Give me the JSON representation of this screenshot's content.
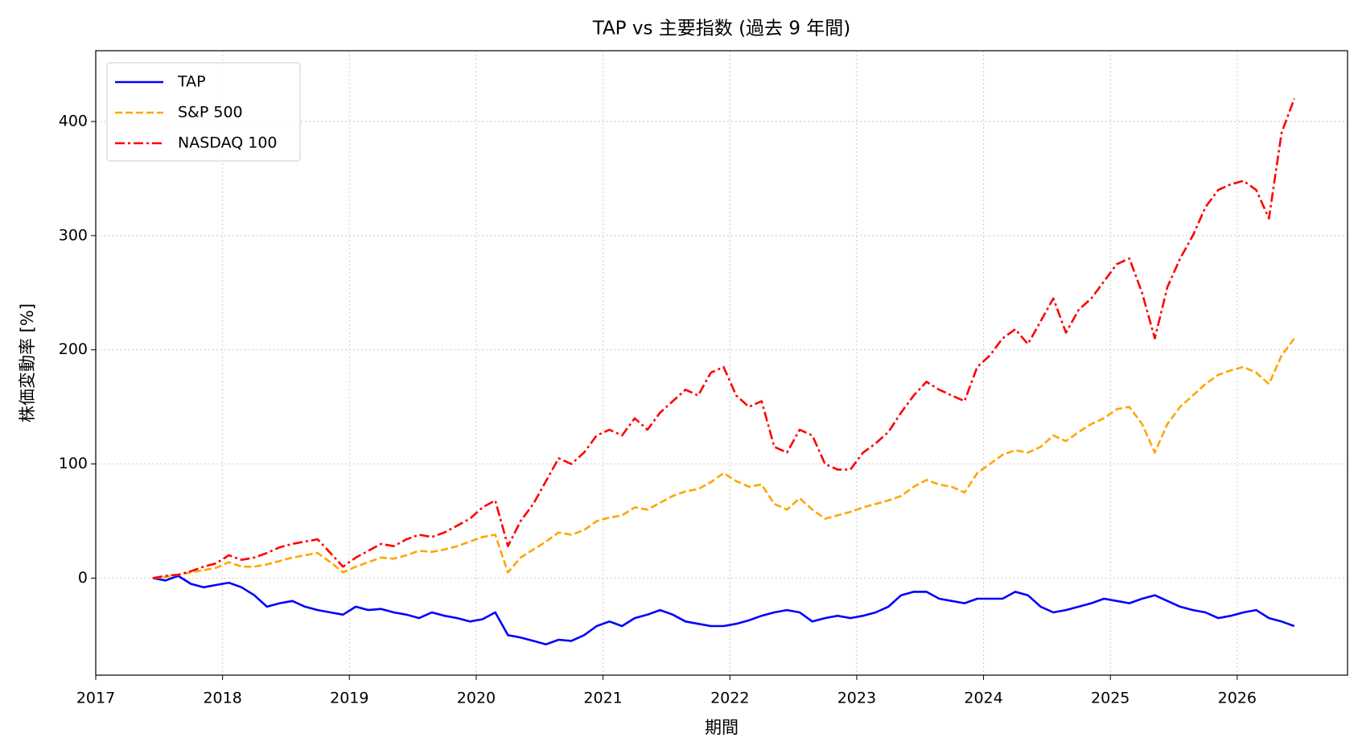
{
  "chart_data": {
    "type": "line",
    "title": "TAP vs 主要指数 (過去 9 年間)",
    "x_label": "期間",
    "y_label": "株価変動率 [%]",
    "x": [
      2017.45,
      2017.55,
      2017.65,
      2017.75,
      2017.85,
      2017.95,
      2018.05,
      2018.15,
      2018.25,
      2018.35,
      2018.45,
      2018.55,
      2018.65,
      2018.75,
      2018.85,
      2018.95,
      2019.05,
      2019.15,
      2019.25,
      2019.35,
      2019.45,
      2019.55,
      2019.65,
      2019.75,
      2019.85,
      2019.95,
      2020.05,
      2020.15,
      2020.25,
      2020.35,
      2020.45,
      2020.55,
      2020.65,
      2020.75,
      2020.85,
      2020.95,
      2021.05,
      2021.15,
      2021.25,
      2021.35,
      2021.45,
      2021.55,
      2021.65,
      2021.75,
      2021.85,
      2021.95,
      2022.05,
      2022.15,
      2022.25,
      2022.35,
      2022.45,
      2022.55,
      2022.65,
      2022.75,
      2022.85,
      2022.95,
      2023.05,
      2023.15,
      2023.25,
      2023.35,
      2023.45,
      2023.55,
      2023.65,
      2023.75,
      2023.85,
      2023.95,
      2024.05,
      2024.15,
      2024.25,
      2024.35,
      2024.45,
      2024.55,
      2024.65,
      2024.75,
      2024.85,
      2024.95,
      2025.05,
      2025.15,
      2025.25,
      2025.35,
      2025.45,
      2025.55,
      2025.65,
      2025.75,
      2025.85,
      2025.95,
      2026.05,
      2026.15,
      2026.25,
      2026.35,
      2026.45
    ],
    "series": [
      {
        "name": "TAP",
        "color": "#0000ff",
        "linestyle": "solid",
        "values": [
          0,
          -2,
          2,
          -5,
          -8,
          -6,
          -4,
          -8,
          -15,
          -25,
          -22,
          -20,
          -25,
          -28,
          -30,
          -32,
          -25,
          -28,
          -27,
          -30,
          -32,
          -35,
          -30,
          -33,
          -35,
          -38,
          -36,
          -30,
          -50,
          -52,
          -55,
          -58,
          -54,
          -55,
          -50,
          -42,
          -38,
          -42,
          -35,
          -32,
          -28,
          -32,
          -38,
          -40,
          -42,
          -42,
          -40,
          -37,
          -33,
          -30,
          -28,
          -30,
          -38,
          -35,
          -33,
          -35,
          -33,
          -30,
          -25,
          -15,
          -12,
          -12,
          -18,
          -20,
          -22,
          -18,
          -18,
          -18,
          -12,
          -15,
          -25,
          -30,
          -28,
          -25,
          -22,
          -18,
          -20,
          -22,
          -18,
          -15,
          -20,
          -25,
          -28,
          -30,
          -35,
          -33,
          -30,
          -28,
          -35,
          -38,
          -42
        ]
      },
      {
        "name": "S&P 500",
        "color": "#ffa500",
        "linestyle": "dashed",
        "values": [
          0,
          1,
          3,
          5,
          7,
          9,
          14,
          10,
          10,
          12,
          15,
          18,
          20,
          22,
          14,
          5,
          10,
          14,
          18,
          17,
          20,
          24,
          23,
          25,
          28,
          32,
          36,
          38,
          5,
          18,
          25,
          32,
          40,
          38,
          42,
          50,
          53,
          55,
          62,
          60,
          66,
          72,
          76,
          78,
          84,
          92,
          85,
          80,
          82,
          65,
          60,
          70,
          60,
          52,
          55,
          58,
          62,
          65,
          68,
          72,
          80,
          86,
          82,
          80,
          75,
          92,
          100,
          108,
          112,
          110,
          115,
          125,
          120,
          128,
          135,
          140,
          148,
          150,
          135,
          110,
          135,
          150,
          160,
          170,
          178,
          182,
          185,
          180,
          170,
          195,
          210
        ]
      },
      {
        "name": "NASDAQ 100",
        "color": "#ff0000",
        "linestyle": "dashdot",
        "values": [
          0,
          2,
          3,
          6,
          10,
          13,
          20,
          16,
          18,
          22,
          27,
          30,
          32,
          34,
          22,
          10,
          18,
          24,
          30,
          28,
          34,
          38,
          36,
          40,
          46,
          52,
          62,
          68,
          28,
          50,
          65,
          85,
          105,
          100,
          110,
          125,
          130,
          125,
          140,
          130,
          145,
          155,
          165,
          160,
          180,
          185,
          160,
          150,
          155,
          115,
          110,
          130,
          125,
          100,
          95,
          95,
          110,
          118,
          128,
          145,
          160,
          172,
          165,
          160,
          155,
          185,
          195,
          210,
          218,
          205,
          225,
          245,
          215,
          235,
          245,
          260,
          275,
          280,
          250,
          210,
          255,
          280,
          300,
          325,
          340,
          345,
          348,
          340,
          315,
          390,
          420
        ]
      }
    ],
    "xlim": [
      2017,
      2026.87
    ],
    "xticks": [
      2017,
      2018,
      2019,
      2020,
      2021,
      2022,
      2023,
      2024,
      2025,
      2026
    ],
    "ylim": [
      -85,
      462
    ],
    "yticks": [
      0,
      100,
      200,
      300,
      400
    ],
    "grid": true,
    "legend": "upper left"
  }
}
